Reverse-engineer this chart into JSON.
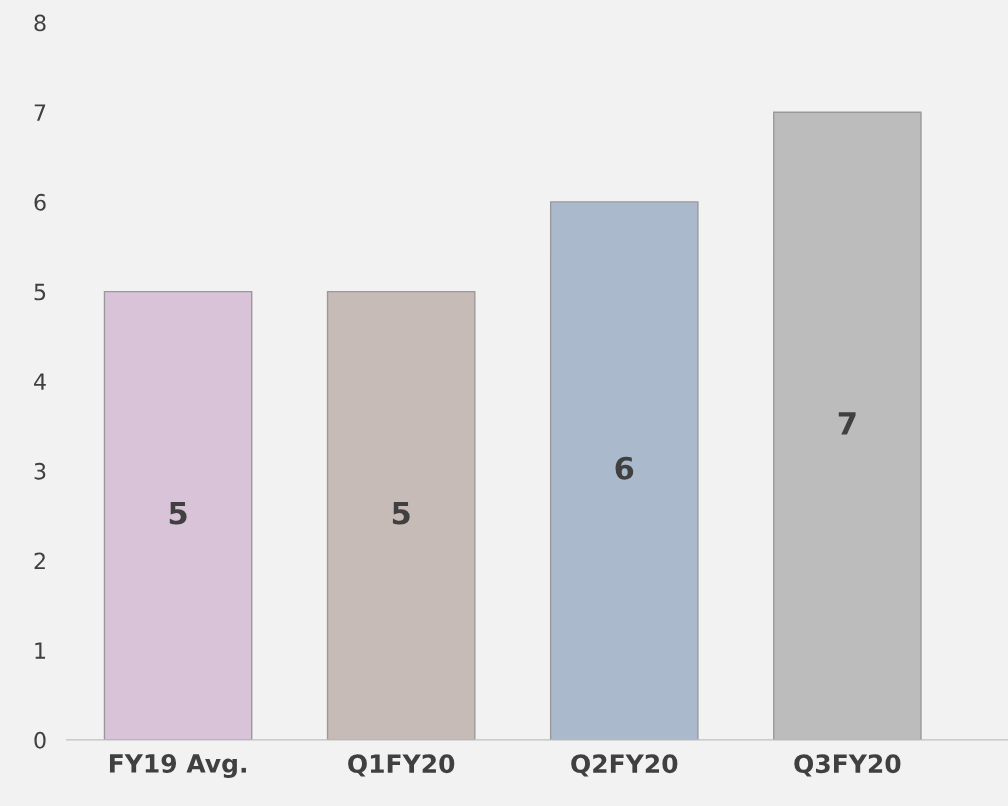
{
  "chart_data": {
    "type": "bar",
    "categories": [
      "FY19 Avg.",
      "Q1FY20",
      "Q2FY20",
      "Q3FY20"
    ],
    "values": [
      5,
      5,
      6,
      7
    ],
    "colors": [
      "#d8c3d8",
      "#c6bbb7",
      "#abb9cc",
      "#bcbcbc"
    ],
    "ylim": [
      0,
      8
    ],
    "yticks": [
      0,
      1,
      2,
      3,
      4,
      5,
      6,
      7,
      8
    ],
    "data_labels": true,
    "grid": false,
    "legend": false
  }
}
